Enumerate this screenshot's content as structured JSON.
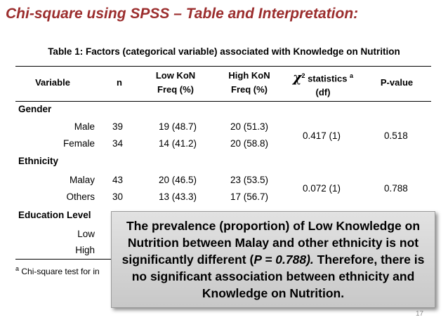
{
  "slide": {
    "title": "Chi-square using SPSS – Table and Interpretation:",
    "page_number": "17"
  },
  "table": {
    "caption": "Table 1: Factors (categorical variable) associated with Knowledge on Nutrition",
    "headers": {
      "variable": "Variable",
      "n": "n",
      "low_kon_line1": "Low KoN",
      "low_kon_line2": "Freq (%)",
      "high_kon_line1": "High KoN",
      "high_kon_line2": "Freq (%)",
      "chi_symbol": "χ",
      "chi_superscript": "2",
      "chi_label": " statistics ",
      "chi_footnote_mark": "a",
      "chi_line2": "(df)",
      "pvalue": "P-value"
    },
    "groups": {
      "gender": {
        "label": "Gender",
        "male": {
          "label": "Male",
          "n": "39",
          "low": "19 (48.7)",
          "high": "20 (51.3)"
        },
        "female": {
          "label": "Female",
          "n": "34",
          "low": "14 (41.2)",
          "high": "20 (58.8)"
        },
        "chi": "0.417 (1)",
        "p": "0.518"
      },
      "ethnicity": {
        "label": "Ethnicity",
        "malay": {
          "label": "Malay",
          "n": "43",
          "low": "20 (46.5)",
          "high": "23 (53.5)"
        },
        "others": {
          "label": "Others",
          "n": "30",
          "low": "13 (43.3)",
          "high": "17 (56.7)"
        },
        "chi": "0.072 (1)",
        "p": "0.788"
      },
      "education": {
        "label": "Education Level",
        "low": {
          "label": "Low"
        },
        "high": {
          "label": "High"
        }
      }
    },
    "footnote_mark": "a",
    "footnote_text": " Chi-square test for in"
  },
  "callout": {
    "text_1": "The prevalence (proportion) of Low Knowledge on Nutrition between Malay and other ethnicity is not significantly different (",
    "pvalue": "P = 0.788).",
    "text_2": " Therefore, there is no significant association between ethnicity and Knowledge on Nutrition."
  }
}
